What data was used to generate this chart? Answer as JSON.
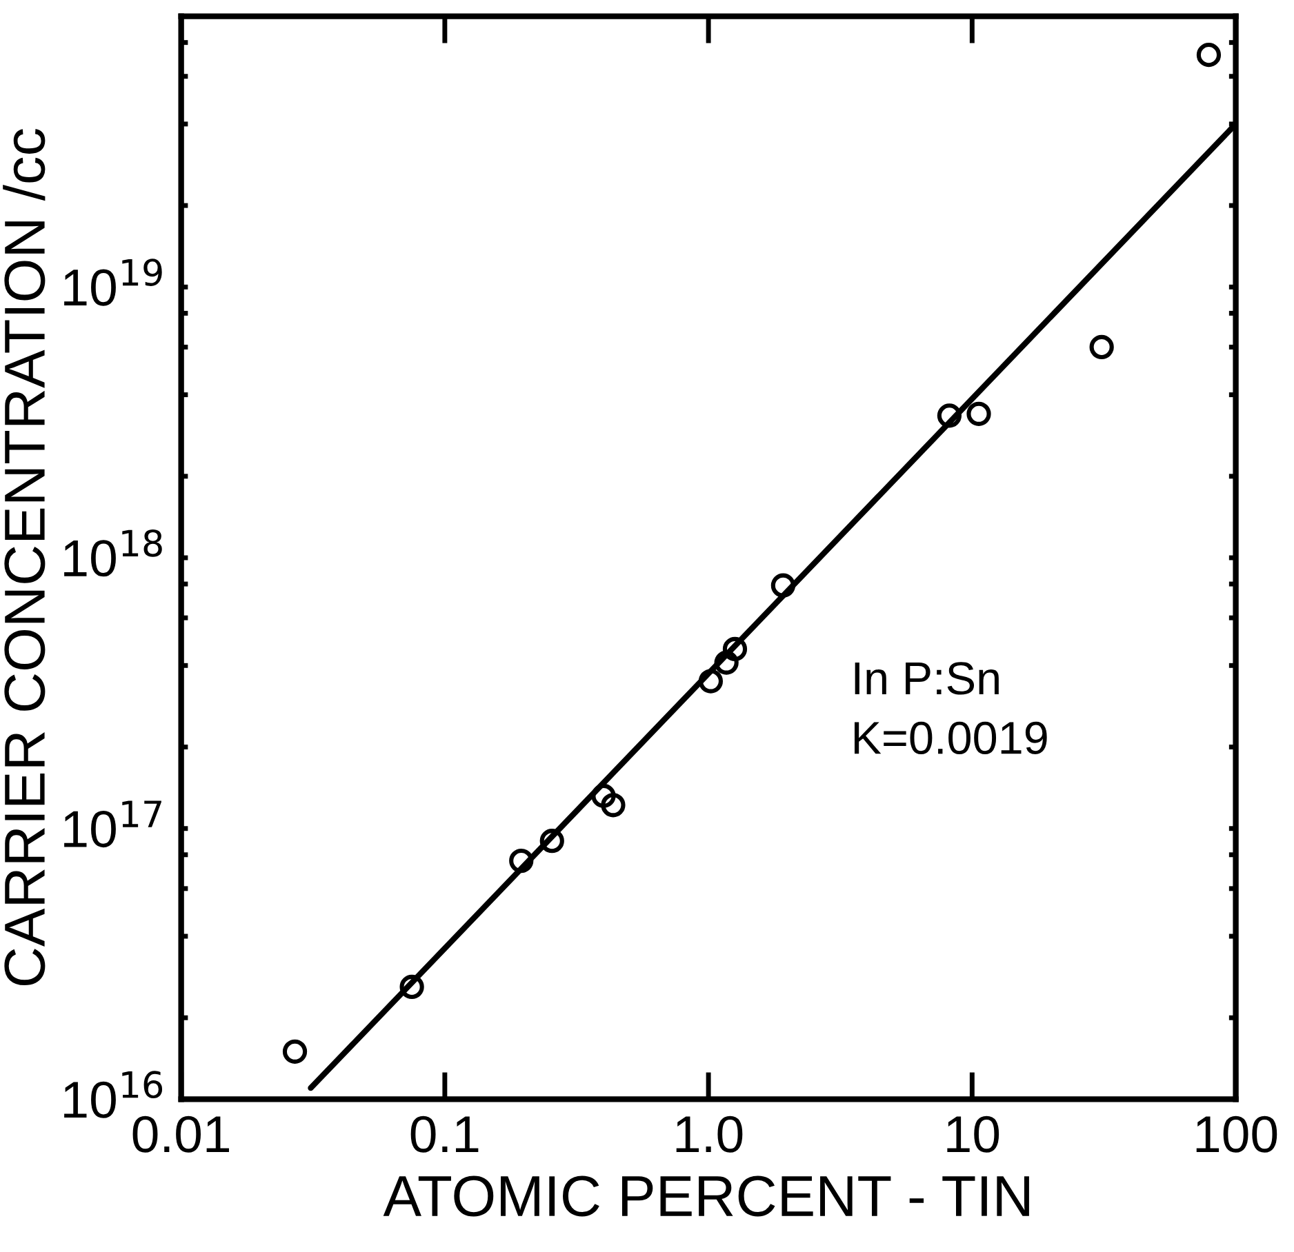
{
  "chart_data": {
    "type": "scatter",
    "xlabel": "ATOMIC PERCENT - TIN",
    "ylabel": "CARRIER CONCENTRATION /cc",
    "log": "xy",
    "grid": false,
    "marker": "circle",
    "annotations": [
      "In P:Sn",
      "K=0.0019"
    ],
    "xlim": [
      0.01,
      100
    ],
    "xticks": [
      {
        "value": 0.01,
        "label": "0.01"
      },
      {
        "value": 0.1,
        "label": "0.1"
      },
      {
        "value": 1,
        "label": "1.0"
      },
      {
        "value": 10,
        "label": "10"
      },
      {
        "value": 100,
        "label": "100"
      }
    ],
    "ylim": [
      1e+16,
      1e+20
    ],
    "yticks": [
      {
        "value": 1e+16,
        "label": "10$^{16}$"
      },
      {
        "value": 2e+16,
        "label": null
      },
      {
        "value": 4e+16,
        "label": null
      },
      {
        "value": 6e+16,
        "label": null
      },
      {
        "value": 8e+16,
        "label": null
      },
      {
        "value": 1e+17,
        "label": "10$^{17}$"
      },
      {
        "value": 2e+17,
        "label": null
      },
      {
        "value": 4e+17,
        "label": null
      },
      {
        "value": 6e+17,
        "label": null
      },
      {
        "value": 8e+17,
        "label": null
      },
      {
        "value": 1e+18,
        "label": "10$^{18}$"
      },
      {
        "value": 2e+18,
        "label": null
      },
      {
        "value": 4e+18,
        "label": null
      },
      {
        "value": 6e+18,
        "label": null
      },
      {
        "value": 8e+18,
        "label": null
      },
      {
        "value": 1e+19,
        "label": "10$^{19}$"
      },
      {
        "value": 2e+19,
        "label": null
      },
      {
        "value": 4e+19,
        "label": null
      },
      {
        "value": 6e+19,
        "label": null
      },
      {
        "value": 8e+19,
        "label": null
      }
    ],
    "series": [
      {
        "color": "#000000",
        "x": [
          0.027,
          0.075,
          0.195,
          0.255,
          0.4,
          0.435,
          1.02,
          1.17,
          1.26,
          1.92,
          8.2,
          10.6,
          31,
          79
        ],
        "values": [
          1.5e+16,
          2.6e+16,
          7.6e+16,
          9e+16,
          1.32e+17,
          1.22e+17,
          3.5e+17,
          4.1e+17,
          4.6e+17,
          7.9e+17,
          3.35e+18,
          3.4e+18,
          6e+18,
          7.2e+19
        ]
      },
      {
        "type": "line",
        "color": "#000000",
        "marker": "none",
        "x": [
          0.031,
          100
        ],
        "values": [
          1.1e+16,
          4e+19
        ]
      }
    ]
  }
}
